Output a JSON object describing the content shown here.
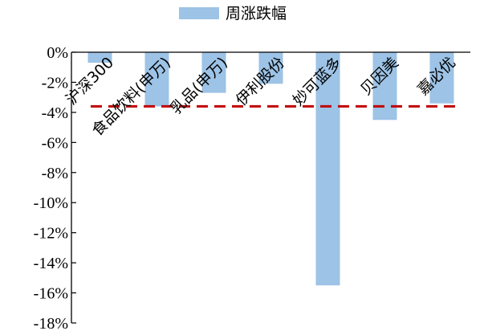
{
  "chart_data": {
    "type": "bar",
    "categories": [
      "沪深300",
      "食品饮料(申万)",
      "乳品(申万)",
      "伊利股份",
      "妙可蓝多",
      "贝因美",
      "嘉必优"
    ],
    "series": [
      {
        "name": "周涨跌幅",
        "values": [
          -0.7,
          -3.6,
          -2.7,
          -2.1,
          -15.5,
          -4.5,
          -3.4
        ],
        "color": "#9dc3e6"
      }
    ],
    "reference_line": {
      "value": -3.6,
      "style": "dashed",
      "color": "#c00000"
    },
    "y_ticks": [
      "0%",
      "-2%",
      "-4%",
      "-6%",
      "-8%",
      "-10%",
      "-12%",
      "-14%",
      "-16%",
      "-18%"
    ],
    "ylim": [
      -18,
      0
    ],
    "legend_position": "top",
    "grid": false
  }
}
